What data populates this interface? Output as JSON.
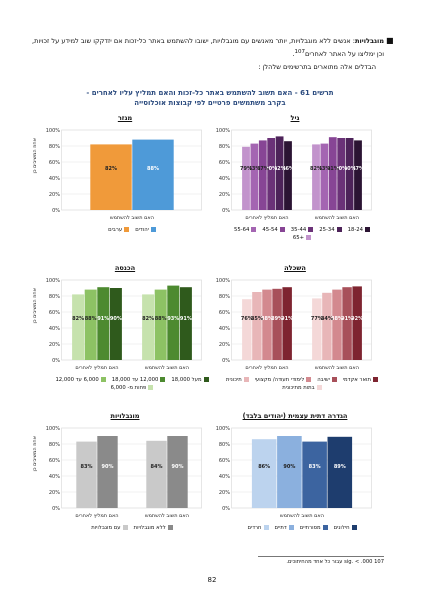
{
  "text": {
    "bullet_bold": "מוגבלויות",
    "bullet_body": ": אנשים ללא מוגבלויות, יותר מאנשים עם מוגבלויות, ישובו להשתמש באתר כל-זכות אם יזדקקו שוב למידע על זכויות, וכן ימליצו על האתר לאחרים",
    "bullet_ref": "107",
    "intro": "הבדלים אלה מתוארים בתרשימים שלהלן :",
    "title_line1": "תרשים 61 - האם תשוב להשתמש באתר כל-זכות והאם תמליץ עליו לאחרים -",
    "title_line2": "בקרב משתמשים פרטיים לפי קבוצות אוכלוסייה",
    "footnote": "107 sig. < .000 עבור כל אחד מהחיתוכים.",
    "page_number": "82"
  },
  "icons": {
    "bullet": "square-bullet"
  },
  "chart_data": [
    {
      "id": "age",
      "type": "bar",
      "title": "גיל",
      "categories": [
        "האם תשוב להשתמש",
        "האם תמליץ לאחרים"
      ],
      "series": [
        {
          "name": "18-24",
          "color": "#2b1433",
          "values": [
            87,
            86
          ]
        },
        {
          "name": "25-34",
          "color": "#4d2359",
          "values": [
            90,
            92
          ]
        },
        {
          "name": "35-44",
          "color": "#6b3278",
          "values": [
            90,
            90
          ]
        },
        {
          "name": "45-54",
          "color": "#874595",
          "values": [
            91,
            87
          ]
        },
        {
          "name": "55-64",
          "color": "#a465b2",
          "values": [
            83,
            83
          ]
        },
        {
          "name": "+65",
          "color": "#c293cc",
          "values": [
            82,
            79
          ]
        }
      ],
      "data_labels": [
        [
          "87%",
          "90%",
          "90%",
          "91%",
          "83%",
          "82%"
        ],
        [
          "86%",
          "92%",
          "90%",
          "87%",
          "83%",
          "79%"
        ]
      ],
      "yticks": [
        "0%",
        "20%",
        "40%",
        "60%",
        "80%",
        "100%"
      ],
      "ylim": [
        0,
        100
      ]
    },
    {
      "id": "sector",
      "type": "bar",
      "title": "מגזר",
      "categories": [
        "האם תשוב להשתמש"
      ],
      "series": [
        {
          "name": "יהודים",
          "color": "#4e9ad8",
          "values": [
            88
          ]
        },
        {
          "name": "ערבים",
          "color": "#f09a3a",
          "values": [
            82
          ]
        }
      ],
      "data_labels": [
        [
          "88%",
          "82%"
        ]
      ],
      "yticks": [
        "0%",
        "20%",
        "40%",
        "60%",
        "80%",
        "100%"
      ],
      "ylim": [
        0,
        100
      ],
      "ylabel": "אחוז המשיבים כן"
    },
    {
      "id": "education",
      "type": "bar",
      "title": "השכלה",
      "categories": [
        "האם תשוב להשתמש",
        "האם תמליץ לאחרים"
      ],
      "series": [
        {
          "name": "תואר אקדמי",
          "color": "#7e2430",
          "values": [
            92,
            91
          ]
        },
        {
          "name": "ישיבה",
          "color": "#a8505a",
          "values": [
            91,
            89
          ]
        },
        {
          "name": "לימודי תעודה/ מקצועי",
          "color": "#d3898f",
          "values": [
            88,
            88
          ]
        },
        {
          "name": "תיכונית",
          "color": "#e8b6b8",
          "values": [
            84,
            85
          ]
        },
        {
          "name": "בתות מתיכונית",
          "color": "#f4d8d8",
          "values": [
            77,
            76
          ]
        }
      ],
      "data_labels": [
        [
          "92%",
          "91%",
          "88%",
          "84%",
          "77%"
        ],
        [
          "91%",
          "89%",
          "88%",
          "85%",
          "76%"
        ]
      ],
      "yticks": [
        "0%",
        "20%",
        "40%",
        "60%",
        "80%",
        "100%"
      ],
      "ylim": [
        0,
        100
      ]
    },
    {
      "id": "income",
      "type": "bar",
      "title": "הכנסה",
      "categories": [
        "האם תשוב להשתמש",
        "האם תמליץ לאחרים"
      ],
      "series": [
        {
          "name": "מעל 18,000",
          "color": "#2f5a1c",
          "values": [
            91,
            90
          ]
        },
        {
          "name": "12,000 עד 18,000",
          "color": "#4d8a30",
          "values": [
            93,
            91
          ]
        },
        {
          "name": "6,000 עד 12,000",
          "color": "#8dc264",
          "values": [
            88,
            88
          ]
        },
        {
          "name": "פחות מ- 6,000",
          "color": "#c6e2ad",
          "values": [
            82,
            82
          ]
        }
      ],
      "data_labels": [
        [
          "91%",
          "93%",
          "88%",
          "82%"
        ],
        [
          "90%",
          "91%",
          "88%",
          "82%"
        ]
      ],
      "yticks": [
        "0%",
        "20%",
        "40%",
        "60%",
        "80%",
        "100%"
      ],
      "ylim": [
        0,
        100
      ],
      "ylabel": "אחוז המשיבים כן"
    },
    {
      "id": "religiosity",
      "type": "bar",
      "title": "הגדרה דתית עצמית (יהודים בלבד)",
      "categories": [
        "האם תשוב להשתמש"
      ],
      "series": [
        {
          "name": "חילונים",
          "color": "#1e3d6e",
          "values": [
            89
          ]
        },
        {
          "name": "מסורתיים",
          "color": "#3c64a0",
          "values": [
            83
          ]
        },
        {
          "name": "דתיים",
          "color": "#8bb0de",
          "values": [
            90
          ]
        },
        {
          "name": "חרדים",
          "color": "#bcd3ee",
          "values": [
            86
          ]
        }
      ],
      "data_labels": [
        [
          "89%",
          "83%",
          "90%",
          "86%"
        ]
      ],
      "yticks": [
        "0%",
        "20%",
        "40%",
        "60%",
        "80%",
        "100%"
      ],
      "ylim": [
        0,
        100
      ]
    },
    {
      "id": "disability",
      "type": "bar",
      "title": "מוגבלויות",
      "categories": [
        "האם תשוב להשתמש",
        "האם תמליץ לאחרים"
      ],
      "series": [
        {
          "name": "ללא מוגבלויות",
          "color": "#8a8a8a",
          "values": [
            90,
            90
          ]
        },
        {
          "name": "עם מוגבלויות",
          "color": "#c9c9c9",
          "values": [
            84,
            83
          ]
        }
      ],
      "data_labels": [
        [
          "90%",
          "84%"
        ],
        [
          "90%",
          "83%"
        ]
      ],
      "yticks": [
        "0%",
        "20%",
        "40%",
        "60%",
        "80%",
        "100%"
      ],
      "ylim": [
        0,
        100
      ],
      "ylabel": "אחוז המשיבים כן"
    }
  ]
}
